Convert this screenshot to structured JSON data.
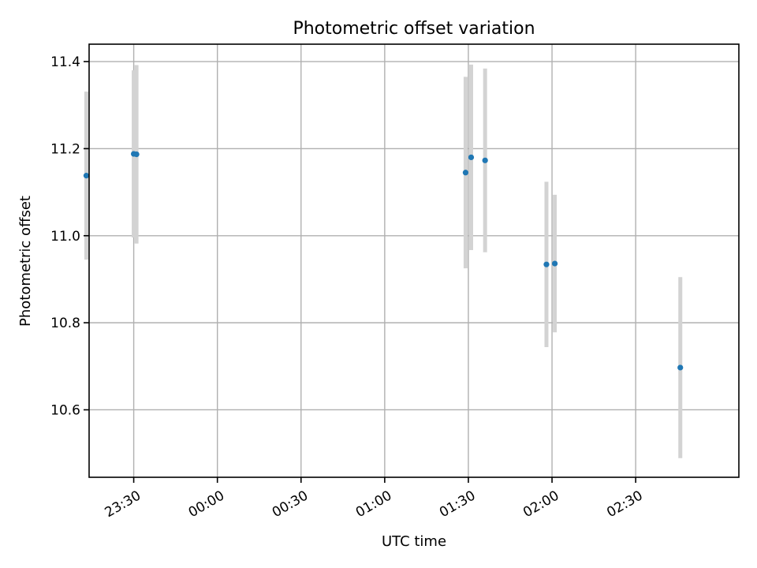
{
  "chart_data": {
    "type": "scatter",
    "title": "Photometric offset variation",
    "xlabel": "UTC time",
    "ylabel": "Photometric offset",
    "grid": true,
    "legend": "none",
    "x_ticks": [
      "23:30",
      "00:00",
      "00:30",
      "01:00",
      "01:30",
      "02:00",
      "02:30"
    ],
    "y_ticks": [
      "10.6",
      "10.8",
      "11.0",
      "11.2",
      "11.4"
    ],
    "xlim": [
      "23:14",
      "03:07"
    ],
    "ylim": [
      10.445,
      11.44
    ],
    "colors": {
      "point": "#1f77b4",
      "error_bar": "#d3d3d3",
      "grid": "#b0b0b0"
    },
    "points": [
      {
        "time": "23:13",
        "y": 11.138,
        "yerr": 0.193
      },
      {
        "time": "23:30",
        "y": 11.188,
        "yerr": 0.192
      },
      {
        "time": "23:31",
        "y": 11.187,
        "yerr": 0.205
      },
      {
        "time": "01:29",
        "y": 11.145,
        "yerr": 0.22
      },
      {
        "time": "01:31",
        "y": 11.18,
        "yerr": 0.213
      },
      {
        "time": "01:36",
        "y": 11.173,
        "yerr": 0.211
      },
      {
        "time": "01:58",
        "y": 10.934,
        "yerr": 0.19
      },
      {
        "time": "02:01",
        "y": 10.936,
        "yerr": 0.158
      },
      {
        "time": "02:46",
        "y": 10.697,
        "yerr": 0.208
      }
    ]
  }
}
